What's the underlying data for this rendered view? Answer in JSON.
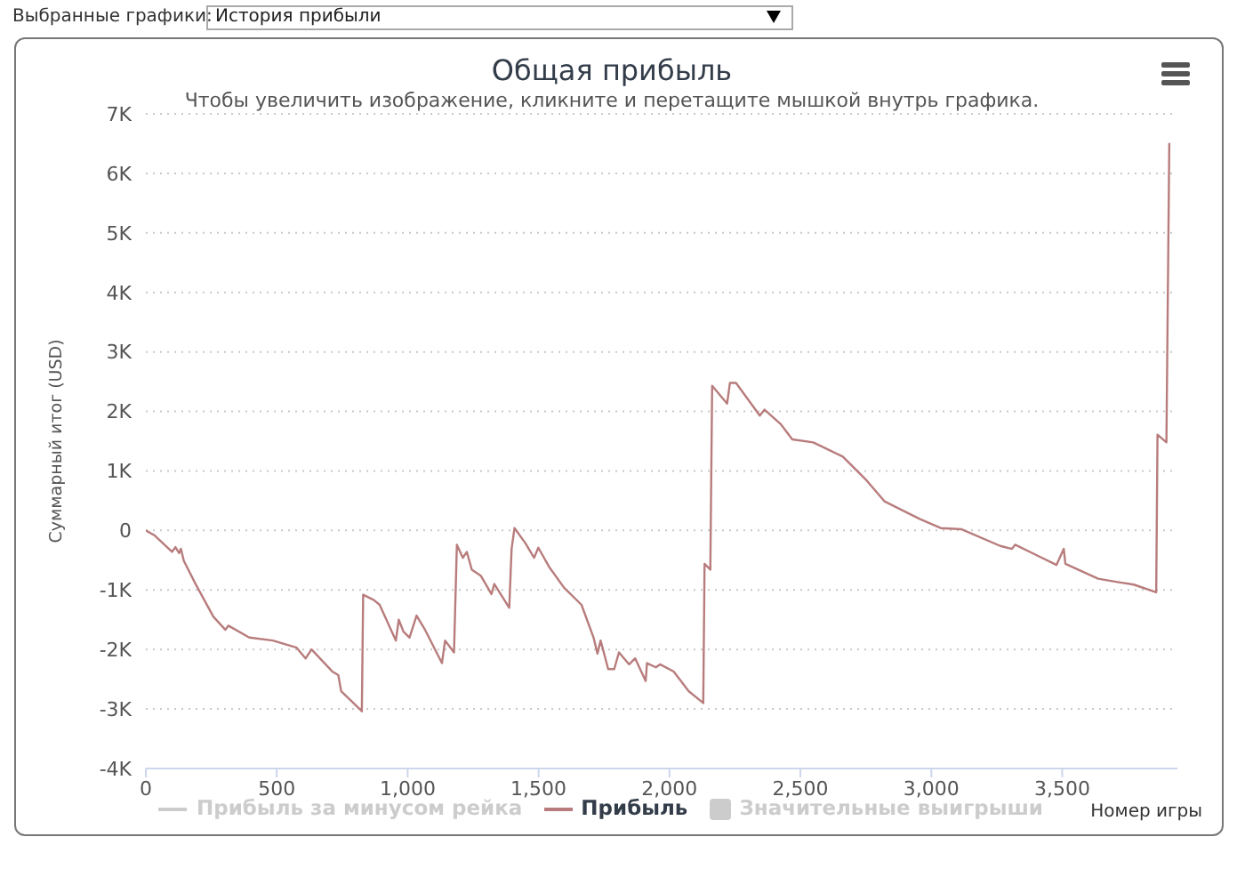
{
  "chart_data": {
    "type": "line",
    "title": "Общая прибыль",
    "subtitle": "Чтобы увеличить изображение, кликните и перетащите мышкой внутрь графика.",
    "xlabel": "Номер игры",
    "ylabel": "Суммарный итог (USD)",
    "annotations": [
      "Выбранные графики:",
      "История прибыли"
    ],
    "xlim": [
      0,
      3940
    ],
    "xticks": [
      0,
      500,
      {
        "value": 1000,
        "label": "1,000"
      },
      {
        "value": 1500,
        "label": "1,500"
      },
      {
        "value": 2000,
        "label": "2,000"
      },
      {
        "value": 2500,
        "label": "2,500"
      },
      {
        "value": 3000,
        "label": "3,000"
      },
      {
        "value": 3500,
        "label": "3,500"
      }
    ],
    "ylim": [
      -4000,
      7000
    ],
    "yticks": [
      {
        "value": -4000,
        "label": "-4K"
      },
      {
        "value": -3000,
        "label": "-3K"
      },
      {
        "value": -2000,
        "label": "-2K"
      },
      {
        "value": -1000,
        "label": "-1K"
      },
      0,
      {
        "value": 1000,
        "label": "1K"
      },
      {
        "value": 2000,
        "label": "2K"
      },
      {
        "value": 3000,
        "label": "3K"
      },
      {
        "value": 4000,
        "label": "4K"
      },
      {
        "value": 5000,
        "label": "5K"
      },
      {
        "value": 6000,
        "label": "6K"
      },
      {
        "value": 7000,
        "label": "7K"
      }
    ],
    "grid": "y",
    "legend": "bottom",
    "marker": "none",
    "line_style": "solid",
    "series": [
      {
        "name": "Прибыль за минусом рейка",
        "color": "#cccccc"
      },
      {
        "name": "Прибыль",
        "color": "#b87c7c",
        "x": [
          0,
          32,
          100,
          113,
          127,
          134,
          145,
          190,
          258,
          304,
          315,
          395,
          485,
          576,
          610,
          633,
          712,
          735,
          746,
          821,
          825,
          830,
          871,
          893,
          955,
          966,
          984,
          1007,
          1034,
          1064,
          1131,
          1143,
          1177,
          1188,
          1211,
          1226,
          1245,
          1279,
          1320,
          1331,
          1388,
          1397,
          1408,
          1449,
          1483,
          1499,
          1540,
          1597,
          1664,
          1710,
          1725,
          1737,
          1766,
          1789,
          1807,
          1846,
          1869,
          1909,
          1914,
          1948,
          1964,
          2016,
          2073,
          2129,
          2134,
          2156,
          2163,
          2220,
          2231,
          2254,
          2345,
          2363,
          2424,
          2469,
          2549,
          2662,
          2753,
          2821,
          2957,
          3036,
          3116,
          3263,
          3308,
          3320,
          3399,
          3478,
          3506,
          3512,
          3637,
          3716,
          3773,
          3859,
          3864,
          3898,
          3909
        ],
        "values": [
          0,
          -80,
          -360,
          -280,
          -380,
          -310,
          -510,
          -900,
          -1450,
          -1670,
          -1600,
          -1800,
          -1850,
          -1970,
          -2150,
          -2000,
          -2370,
          -2430,
          -2700,
          -3020,
          -3040,
          -1080,
          -1170,
          -1250,
          -1850,
          -1500,
          -1700,
          -1800,
          -1430,
          -1650,
          -2230,
          -1850,
          -2050,
          -240,
          -460,
          -360,
          -660,
          -760,
          -1070,
          -900,
          -1300,
          -310,
          40,
          -210,
          -460,
          -290,
          -610,
          -960,
          -1250,
          -1800,
          -2070,
          -1850,
          -2330,
          -2330,
          -2050,
          -2250,
          -2150,
          -2530,
          -2230,
          -2300,
          -2250,
          -2370,
          -2700,
          -2900,
          -560,
          -660,
          2430,
          2130,
          2480,
          2480,
          1930,
          2030,
          1790,
          1530,
          1480,
          1240,
          840,
          490,
          190,
          40,
          20,
          -260,
          -310,
          -240,
          -410,
          -580,
          -310,
          -560,
          -810,
          -870,
          -910,
          -1040,
          1610,
          1480,
          6510
        ]
      },
      {
        "name": "Значительные выигрыши",
        "type": "scatter",
        "marker": "square",
        "color": "#cccccc"
      }
    ]
  }
}
